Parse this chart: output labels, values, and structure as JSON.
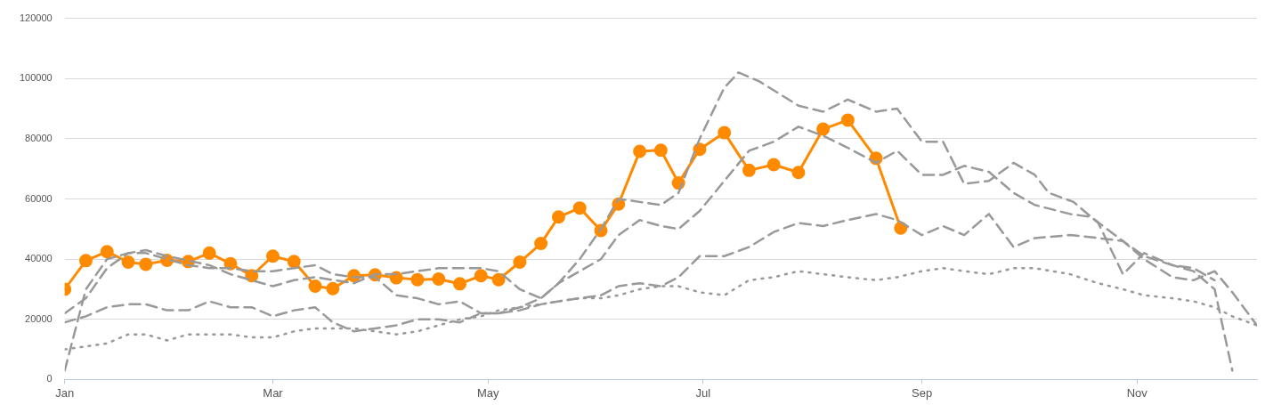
{
  "chart_data": {
    "type": "line",
    "xlim": [
      "--01-01",
      "--12-05"
    ],
    "xticks": [
      {
        "value": "--01-01",
        "label": "Jan"
      },
      {
        "value": "--03-01",
        "label": "Mar"
      },
      {
        "value": "--05-01",
        "label": "May"
      },
      {
        "value": "--07-01",
        "label": "Jul"
      },
      {
        "value": "--09-01",
        "label": "Sep"
      },
      {
        "value": "--11-01",
        "label": "Nov"
      }
    ],
    "ylim": [
      0,
      120000
    ],
    "yticks": [
      0,
      20000,
      40000,
      60000,
      80000,
      100000,
      120000
    ],
    "grid": "y",
    "legend": false,
    "series": [
      {
        "color": "#999999",
        "line_style": "dashed",
        "marker": "none",
        "x": [
          "--01-01",
          "--01-07",
          "--01-13",
          "--01-19",
          "--01-24",
          "--01-30",
          "--02-11",
          "--02-17",
          "--02-23",
          "--03-01",
          "--03-07",
          "--03-13",
          "--03-24",
          "--03-30",
          "--04-05",
          "--04-17",
          "--04-29",
          "--05-04",
          "--05-10",
          "--05-16",
          "--05-21",
          "--05-27",
          "--06-02",
          "--06-07",
          "--06-13",
          "--06-19",
          "--06-24",
          "--06-30",
          "--07-07",
          "--07-11",
          "--07-17",
          "--07-28",
          "--08-04",
          "--08-11",
          "--08-19",
          "--08-25",
          "--09-01",
          "--09-07",
          "--09-13",
          "--09-20",
          "--09-27",
          "--10-03",
          "--10-07",
          "--10-14",
          "--10-21",
          "--10-28",
          "--11-03",
          "--11-11",
          "--11-17",
          "--11-23",
          "--11-28"
        ],
        "values": [
          22000,
          27000,
          37000,
          42000,
          43000,
          41000,
          38000,
          35000,
          33000,
          31000,
          33000,
          34000,
          32000,
          35000,
          35000,
          37000,
          37000,
          36000,
          30000,
          27000,
          32000,
          40000,
          50000,
          60000,
          59000,
          58000,
          62000,
          80000,
          97000,
          102000,
          99000,
          91000,
          89000,
          93000,
          89000,
          90000,
          79000,
          79000,
          65000,
          66000,
          72000,
          68000,
          62000,
          59000,
          52000,
          35000,
          42000,
          38000,
          36000,
          30000,
          3000
        ]
      },
      {
        "color": "#999999",
        "line_style": "dashed",
        "marker": "none",
        "x": [
          "--01-01",
          "--01-07",
          "--01-13",
          "--01-19",
          "--01-24",
          "--01-30",
          "--02-05",
          "--02-11",
          "--02-17",
          "--02-23",
          "--03-01",
          "--03-07",
          "--03-13",
          "--03-18",
          "--03-24",
          "--03-30",
          "--04-05",
          "--04-11",
          "--04-17",
          "--04-23",
          "--04-29",
          "--05-04",
          "--05-10",
          "--05-16",
          "--05-21",
          "--05-27",
          "--06-02",
          "--06-07",
          "--06-13",
          "--06-19",
          "--06-24",
          "--06-30",
          "--07-07",
          "--07-14",
          "--07-21",
          "--07-28",
          "--08-04",
          "--08-11",
          "--08-19",
          "--08-25",
          "--09-01",
          "--09-07",
          "--09-13",
          "--09-20",
          "--09-27",
          "--10-03",
          "--10-13",
          "--10-19",
          "--10-28",
          "--11-03",
          "--11-11",
          "--11-17",
          "--11-23",
          "--11-28",
          "--12-05"
        ],
        "values": [
          3000,
          30000,
          40000,
          42000,
          42000,
          40000,
          38000,
          37000,
          37000,
          36000,
          36000,
          37000,
          38000,
          35000,
          34000,
          34000,
          28000,
          27000,
          25000,
          26000,
          22000,
          22000,
          24000,
          27000,
          32000,
          36000,
          40000,
          48000,
          53000,
          51000,
          50000,
          56000,
          66000,
          76000,
          79000,
          84000,
          81000,
          77000,
          72000,
          76000,
          68000,
          68000,
          71000,
          69000,
          62000,
          58000,
          55000,
          54000,
          46000,
          40000,
          34000,
          33000,
          36000,
          29000,
          18000
        ]
      },
      {
        "color": "#999999",
        "line_style": "dashed",
        "marker": "none",
        "x": [
          "--01-01",
          "--01-07",
          "--01-13",
          "--01-19",
          "--01-24",
          "--01-30",
          "--02-05",
          "--02-11",
          "--02-17",
          "--02-23",
          "--03-01",
          "--03-07",
          "--03-13",
          "--03-18",
          "--03-24",
          "--03-30",
          "--04-05",
          "--04-11",
          "--04-17",
          "--04-23",
          "--04-29",
          "--05-04",
          "--05-10",
          "--05-16",
          "--05-21",
          "--05-27",
          "--06-02",
          "--06-07",
          "--06-13",
          "--06-19",
          "--06-24",
          "--06-30",
          "--07-07",
          "--07-14",
          "--07-21",
          "--07-28",
          "--08-04",
          "--08-11",
          "--08-19",
          "--08-25",
          "--09-01",
          "--09-07",
          "--09-13",
          "--09-20",
          "--09-27",
          "--10-03",
          "--10-13",
          "--10-21",
          "--10-28",
          "--11-03",
          "--11-11",
          "--11-17",
          "--11-23"
        ],
        "values": [
          19000,
          21000,
          24000,
          25000,
          25000,
          23000,
          23000,
          26000,
          24000,
          24000,
          21000,
          23000,
          24000,
          19000,
          16000,
          17000,
          18000,
          20000,
          20000,
          19000,
          22000,
          22000,
          23000,
          25000,
          26000,
          27000,
          28000,
          31000,
          32000,
          31000,
          34000,
          41000,
          41000,
          44000,
          49000,
          52000,
          51000,
          53000,
          55000,
          53000,
          48000,
          51000,
          48000,
          55000,
          44000,
          47000,
          48000,
          47000,
          46000,
          41000,
          38000,
          37000,
          33000
        ]
      },
      {
        "color": "#999999",
        "line_style": "dotted",
        "marker": "none",
        "x": [
          "--01-01",
          "--01-07",
          "--01-13",
          "--01-19",
          "--01-24",
          "--01-30",
          "--02-05",
          "--02-11",
          "--02-17",
          "--02-23",
          "--03-01",
          "--03-07",
          "--03-13",
          "--03-18",
          "--03-24",
          "--03-30",
          "--04-05",
          "--04-11",
          "--04-17",
          "--04-23",
          "--04-29",
          "--05-04",
          "--05-10",
          "--05-16",
          "--05-21",
          "--05-27",
          "--06-02",
          "--06-07",
          "--06-13",
          "--06-19",
          "--06-24",
          "--06-30",
          "--07-07",
          "--07-14",
          "--07-21",
          "--07-28",
          "--08-04",
          "--08-11",
          "--08-19",
          "--08-25",
          "--09-01",
          "--09-07",
          "--09-13",
          "--09-20",
          "--09-27",
          "--10-03",
          "--10-13",
          "--10-21",
          "--10-28",
          "--11-03",
          "--11-11",
          "--11-17",
          "--11-23",
          "--11-28",
          "--12-05"
        ],
        "values": [
          10000,
          11000,
          12000,
          15000,
          15000,
          13000,
          15000,
          15000,
          15000,
          14000,
          14000,
          16000,
          17000,
          17000,
          17000,
          16000,
          15000,
          16000,
          18000,
          20000,
          21000,
          23000,
          24000,
          25000,
          26000,
          27000,
          27000,
          28000,
          30000,
          31000,
          31000,
          29000,
          28000,
          33000,
          34000,
          36000,
          35000,
          34000,
          33000,
          34000,
          36000,
          37000,
          36000,
          35000,
          37000,
          37000,
          35000,
          32000,
          30000,
          28000,
          27000,
          26000,
          24000,
          21000,
          18000
        ]
      },
      {
        "color": "#ff8a00",
        "line_style": "solid",
        "marker": "circle",
        "x": [
          "--01-01",
          "--01-07",
          "--01-13",
          "--01-19",
          "--01-24",
          "--01-30",
          "--02-05",
          "--02-11",
          "--02-17",
          "--02-23",
          "--03-01",
          "--03-07",
          "--03-13",
          "--03-18",
          "--03-24",
          "--03-30",
          "--04-05",
          "--04-11",
          "--04-17",
          "--04-23",
          "--04-29",
          "--05-04",
          "--05-10",
          "--05-16",
          "--05-21",
          "--05-27",
          "--06-02",
          "--06-07",
          "--06-13",
          "--06-19",
          "--06-24",
          "--06-30",
          "--07-07",
          "--07-14",
          "--07-21",
          "--07-28",
          "--08-04",
          "--08-11",
          "--08-19",
          "--08-26"
        ],
        "values": [
          30000,
          39500,
          42500,
          39000,
          38300,
          39600,
          39200,
          42000,
          38500,
          34500,
          41000,
          39200,
          31000,
          30200,
          34500,
          34800,
          33800,
          33200,
          33400,
          31800,
          34500,
          33200,
          39000,
          45200,
          54000,
          57000,
          49500,
          58300,
          75800,
          76200,
          65300,
          76500,
          82000,
          69500,
          71400,
          68800,
          83200,
          86200,
          73500,
          50300
        ]
      }
    ]
  }
}
